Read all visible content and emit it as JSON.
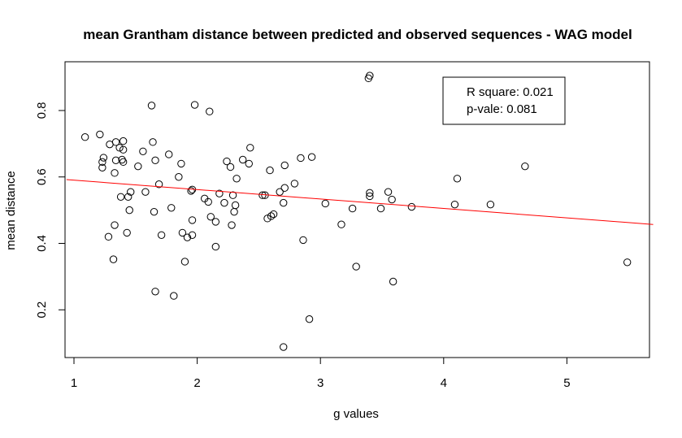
{
  "chart_data": {
    "type": "scatter",
    "title": "mean Grantham distance between predicted and observed sequences - WAG model",
    "xlabel": "g values",
    "ylabel": "mean distance",
    "xlim": [
      1,
      5.7
    ],
    "ylim": [
      0.07,
      0.94
    ],
    "x_ticks": [
      "1",
      "2",
      "3",
      "4",
      "5"
    ],
    "y_ticks": [
      "0.2",
      "0.4",
      "0.6",
      "0.8"
    ],
    "regression_line": {
      "color": "#ff0000",
      "x": [
        0.94,
        5.7
      ],
      "y": [
        0.592,
        0.457
      ]
    },
    "legend": {
      "placement": "top-right",
      "lines": [
        "R square: 0.021",
        "p-vale: 0.081"
      ]
    },
    "points": [
      {
        "x": 1.09,
        "y": 0.72
      },
      {
        "x": 1.21,
        "y": 0.728
      },
      {
        "x": 1.23,
        "y": 0.645
      },
      {
        "x": 1.23,
        "y": 0.628
      },
      {
        "x": 1.24,
        "y": 0.658
      },
      {
        "x": 1.28,
        "y": 0.42
      },
      {
        "x": 1.29,
        "y": 0.698
      },
      {
        "x": 1.32,
        "y": 0.352
      },
      {
        "x": 1.33,
        "y": 0.455
      },
      {
        "x": 1.33,
        "y": 0.612
      },
      {
        "x": 1.34,
        "y": 0.705
      },
      {
        "x": 1.34,
        "y": 0.65
      },
      {
        "x": 1.37,
        "y": 0.688
      },
      {
        "x": 1.38,
        "y": 0.54
      },
      {
        "x": 1.39,
        "y": 0.652
      },
      {
        "x": 1.4,
        "y": 0.682
      },
      {
        "x": 1.4,
        "y": 0.708
      },
      {
        "x": 1.4,
        "y": 0.645
      },
      {
        "x": 1.43,
        "y": 0.432
      },
      {
        "x": 1.44,
        "y": 0.54
      },
      {
        "x": 1.45,
        "y": 0.5
      },
      {
        "x": 1.46,
        "y": 0.555
      },
      {
        "x": 1.52,
        "y": 0.632
      },
      {
        "x": 1.56,
        "y": 0.677
      },
      {
        "x": 1.58,
        "y": 0.555
      },
      {
        "x": 1.63,
        "y": 0.815
      },
      {
        "x": 1.64,
        "y": 0.705
      },
      {
        "x": 1.65,
        "y": 0.495
      },
      {
        "x": 1.66,
        "y": 0.65
      },
      {
        "x": 1.66,
        "y": 0.255
      },
      {
        "x": 1.69,
        "y": 0.578
      },
      {
        "x": 1.71,
        "y": 0.425
      },
      {
        "x": 1.77,
        "y": 0.668
      },
      {
        "x": 1.79,
        "y": 0.507
      },
      {
        "x": 1.81,
        "y": 0.242
      },
      {
        "x": 1.85,
        "y": 0.6
      },
      {
        "x": 1.87,
        "y": 0.64
      },
      {
        "x": 1.88,
        "y": 0.432
      },
      {
        "x": 1.9,
        "y": 0.345
      },
      {
        "x": 1.92,
        "y": 0.418
      },
      {
        "x": 1.95,
        "y": 0.558
      },
      {
        "x": 1.96,
        "y": 0.562
      },
      {
        "x": 1.96,
        "y": 0.47
      },
      {
        "x": 1.96,
        "y": 0.425
      },
      {
        "x": 1.98,
        "y": 0.817
      },
      {
        "x": 2.06,
        "y": 0.535
      },
      {
        "x": 2.09,
        "y": 0.525
      },
      {
        "x": 2.1,
        "y": 0.797
      },
      {
        "x": 2.11,
        "y": 0.48
      },
      {
        "x": 2.15,
        "y": 0.39
      },
      {
        "x": 2.15,
        "y": 0.465
      },
      {
        "x": 2.18,
        "y": 0.55
      },
      {
        "x": 2.22,
        "y": 0.522
      },
      {
        "x": 2.24,
        "y": 0.647
      },
      {
        "x": 2.27,
        "y": 0.63
      },
      {
        "x": 2.28,
        "y": 0.455
      },
      {
        "x": 2.29,
        "y": 0.545
      },
      {
        "x": 2.3,
        "y": 0.495
      },
      {
        "x": 2.31,
        "y": 0.515
      },
      {
        "x": 2.32,
        "y": 0.595
      },
      {
        "x": 2.37,
        "y": 0.652
      },
      {
        "x": 2.42,
        "y": 0.64
      },
      {
        "x": 2.43,
        "y": 0.688
      },
      {
        "x": 2.53,
        "y": 0.545
      },
      {
        "x": 2.55,
        "y": 0.545
      },
      {
        "x": 2.57,
        "y": 0.475
      },
      {
        "x": 2.59,
        "y": 0.62
      },
      {
        "x": 2.6,
        "y": 0.482
      },
      {
        "x": 2.62,
        "y": 0.488
      },
      {
        "x": 2.67,
        "y": 0.555
      },
      {
        "x": 2.7,
        "y": 0.522
      },
      {
        "x": 2.7,
        "y": 0.088
      },
      {
        "x": 2.71,
        "y": 0.567
      },
      {
        "x": 2.71,
        "y": 0.635
      },
      {
        "x": 2.79,
        "y": 0.58
      },
      {
        "x": 2.84,
        "y": 0.657
      },
      {
        "x": 2.86,
        "y": 0.41
      },
      {
        "x": 2.91,
        "y": 0.172
      },
      {
        "x": 2.93,
        "y": 0.66
      },
      {
        "x": 3.04,
        "y": 0.52
      },
      {
        "x": 3.17,
        "y": 0.457
      },
      {
        "x": 3.26,
        "y": 0.505
      },
      {
        "x": 3.29,
        "y": 0.33
      },
      {
        "x": 3.39,
        "y": 0.897
      },
      {
        "x": 3.4,
        "y": 0.905
      },
      {
        "x": 3.4,
        "y": 0.552
      },
      {
        "x": 3.4,
        "y": 0.542
      },
      {
        "x": 3.49,
        "y": 0.505
      },
      {
        "x": 3.55,
        "y": 0.555
      },
      {
        "x": 3.58,
        "y": 0.532
      },
      {
        "x": 3.59,
        "y": 0.285
      },
      {
        "x": 3.74,
        "y": 0.51
      },
      {
        "x": 4.09,
        "y": 0.517
      },
      {
        "x": 4.11,
        "y": 0.595
      },
      {
        "x": 4.38,
        "y": 0.517
      },
      {
        "x": 4.66,
        "y": 0.632
      },
      {
        "x": 5.49,
        "y": 0.343
      }
    ]
  }
}
